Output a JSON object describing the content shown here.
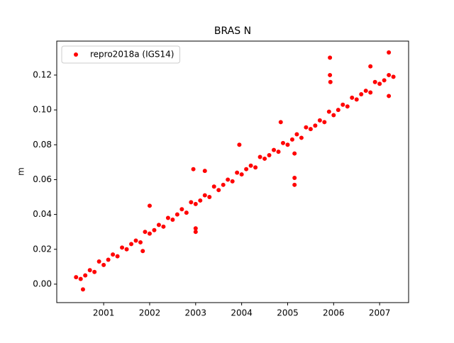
{
  "chart_data": {
    "type": "scatter",
    "title": "BRAS N",
    "ylabel": "m",
    "legend": "upper left",
    "xlim": [
      1999.98,
      2007.63
    ],
    "ylim": [
      -0.0106,
      0.1395
    ],
    "xticks": [
      2001,
      2002,
      2003,
      2004,
      2005,
      2006,
      2007
    ],
    "yticks": [
      {
        "value": 0,
        "label": "0.00"
      },
      {
        "value": 0.02,
        "label": "0.02"
      },
      {
        "value": 0.04,
        "label": "0.04"
      },
      {
        "value": 0.06,
        "label": "0.06"
      },
      {
        "value": 0.08,
        "label": "0.08"
      },
      {
        "value": 0.1,
        "label": "0.10"
      },
      {
        "value": 0.12,
        "label": "0.12"
      }
    ],
    "series": [
      {
        "name": "repro2018a (IGS14)",
        "color": "#ff0000",
        "x": [
          2000.4,
          2000.5,
          2000.6,
          2000.7,
          2000.8,
          2000.9,
          2001.0,
          2001.1,
          2001.2,
          2001.3,
          2001.4,
          2001.5,
          2001.6,
          2001.7,
          2001.8,
          2001.9,
          2002.0,
          2002.1,
          2002.2,
          2002.3,
          2002.4,
          2002.5,
          2002.6,
          2002.7,
          2002.8,
          2002.9,
          2003.0,
          2003.1,
          2003.2,
          2003.3,
          2003.4,
          2003.5,
          2003.6,
          2003.7,
          2003.8,
          2003.9,
          2004.0,
          2004.1,
          2004.2,
          2004.3,
          2004.4,
          2004.5,
          2004.6,
          2004.7,
          2004.8,
          2004.9,
          2005.0,
          2005.1,
          2005.2,
          2005.3,
          2005.4,
          2005.5,
          2005.6,
          2005.7,
          2005.8,
          2005.9,
          2006.0,
          2006.1,
          2006.2,
          2006.3,
          2006.4,
          2006.5,
          2006.6,
          2006.7,
          2006.8,
          2006.9,
          2007.0,
          2007.1,
          2007.2,
          2007.3,
          2005.92,
          2005.92,
          2005.93,
          2007.2,
          2007.2,
          2005.15,
          2005.15,
          2005.15,
          2002.95,
          2003.0,
          2003.0,
          2003.2,
          2003.95,
          2001.85,
          2004.85,
          2002.0,
          2006.8,
          2000.55
        ],
        "values": [
          0.004,
          0.003,
          0.005,
          0.008,
          0.007,
          0.013,
          0.011,
          0.014,
          0.017,
          0.016,
          0.021,
          0.02,
          0.023,
          0.025,
          0.024,
          0.03,
          0.029,
          0.031,
          0.034,
          0.033,
          0.038,
          0.037,
          0.04,
          0.043,
          0.041,
          0.047,
          0.046,
          0.048,
          0.051,
          0.05,
          0.056,
          0.054,
          0.057,
          0.06,
          0.059,
          0.064,
          0.063,
          0.066,
          0.068,
          0.067,
          0.073,
          0.072,
          0.074,
          0.077,
          0.076,
          0.081,
          0.08,
          0.083,
          0.086,
          0.084,
          0.09,
          0.089,
          0.091,
          0.094,
          0.093,
          0.099,
          0.097,
          0.1,
          0.103,
          0.102,
          0.107,
          0.106,
          0.109,
          0.111,
          0.11,
          0.116,
          0.115,
          0.117,
          0.12,
          0.119,
          0.13,
          0.12,
          0.116,
          0.133,
          0.108,
          0.057,
          0.061,
          0.075,
          0.066,
          0.03,
          0.032,
          0.065,
          0.08,
          0.019,
          0.093,
          0.045,
          0.125,
          -0.003
        ]
      }
    ]
  }
}
